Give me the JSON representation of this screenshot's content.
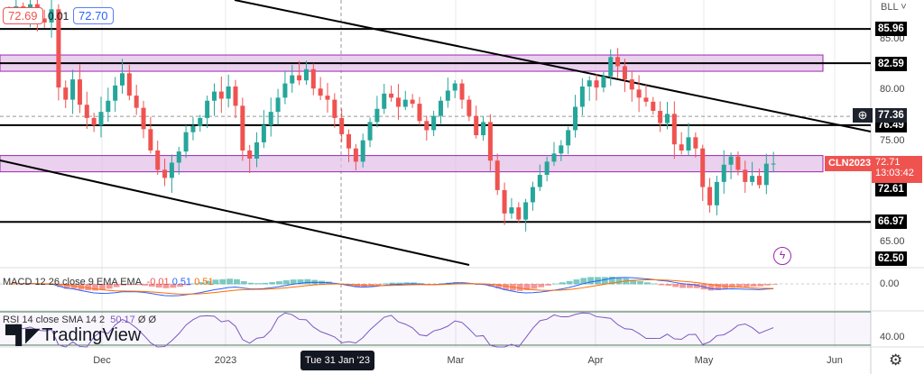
{
  "legend": {
    "open_value": "72.69",
    "change": "0.01",
    "close_value": "72.70",
    "currency_selector": "BLL"
  },
  "symbol": {
    "name": "CLN2023",
    "price": "72.71",
    "countdown": "13:03:42",
    "color": "#ef5350"
  },
  "price_axis": {
    "ticks": [
      "85.00",
      "80.00",
      "75.00",
      "65.00"
    ],
    "levels": [
      {
        "value": "85.96",
        "price": 85.96
      },
      {
        "value": "82.59",
        "price": 82.59
      },
      {
        "value": "77.36",
        "price": 77.36
      },
      {
        "value": "76.49",
        "price": 76.49
      },
      {
        "value": "72.61",
        "price": 72.61
      },
      {
        "value": "66.97",
        "price": 66.97
      },
      {
        "value": "62.50",
        "price": 62.5
      }
    ]
  },
  "zones": [
    {
      "from": 81.8,
      "to": 83.4
    },
    {
      "from": 71.9,
      "to": 73.5
    }
  ],
  "time_axis": {
    "labels": [
      "Dec",
      "2023",
      "Mar",
      "Apr",
      "May",
      "Jun"
    ],
    "crosshair_label": "Tue 31 Jan '23"
  },
  "macd": {
    "title": "MACD 12 26 close 9 EMA EMA",
    "hist": "-0.01",
    "macd": "0.51",
    "signal": "0.51",
    "axis": "0.00"
  },
  "rsi": {
    "title": "RSI 14 close SMA 14 2",
    "value": "50.17",
    "na1": "Ø",
    "na2": "Ø",
    "axis": "40.00"
  },
  "branding": "TradingView",
  "colors": {
    "up": "#26a69a",
    "down": "#ef5350",
    "zone": "#e1bee7",
    "rsi": "#7e57c2",
    "macd": "#2962ff",
    "signal": "#ff6d00"
  },
  "closes": [
    87.5,
    88.2,
    87.6,
    88.4,
    87.0,
    86.6,
    87.9,
    80.2,
    79.0,
    81.0,
    78.5,
    77.2,
    76.5,
    77.8,
    78.9,
    80.4,
    81.6,
    79.4,
    78.2,
    76.1,
    74.0,
    72.1,
    71.3,
    72.8,
    73.9,
    75.8,
    76.4,
    77.2,
    78.9,
    79.8,
    79.1,
    80.3,
    78.4,
    74.0,
    73.2,
    74.8,
    76.5,
    77.8,
    79.2,
    80.6,
    81.4,
    80.9,
    82.0,
    80.1,
    79.4,
    79.0,
    77.2,
    75.6,
    74.2,
    72.9,
    75.0,
    76.8,
    78.1,
    79.6,
    79.2,
    78.3,
    79.0,
    78.6,
    76.9,
    76.0,
    77.4,
    78.9,
    79.9,
    80.6,
    79.0,
    77.4,
    75.5,
    76.8,
    73.0,
    70.1,
    67.8,
    68.4,
    67.2,
    68.9,
    70.4,
    71.6,
    72.9,
    73.7,
    74.5,
    76.0,
    78.3,
    80.3,
    80.9,
    80.2,
    81.3,
    83.2,
    82.3,
    81.0,
    80.0,
    79.2,
    78.8,
    77.9,
    76.7,
    77.6,
    74.6,
    74.0,
    75.3,
    74.2,
    70.4,
    68.6,
    70.9,
    72.6,
    73.4,
    72.1,
    70.9,
    71.5,
    70.6,
    72.7,
    72.71
  ]
}
